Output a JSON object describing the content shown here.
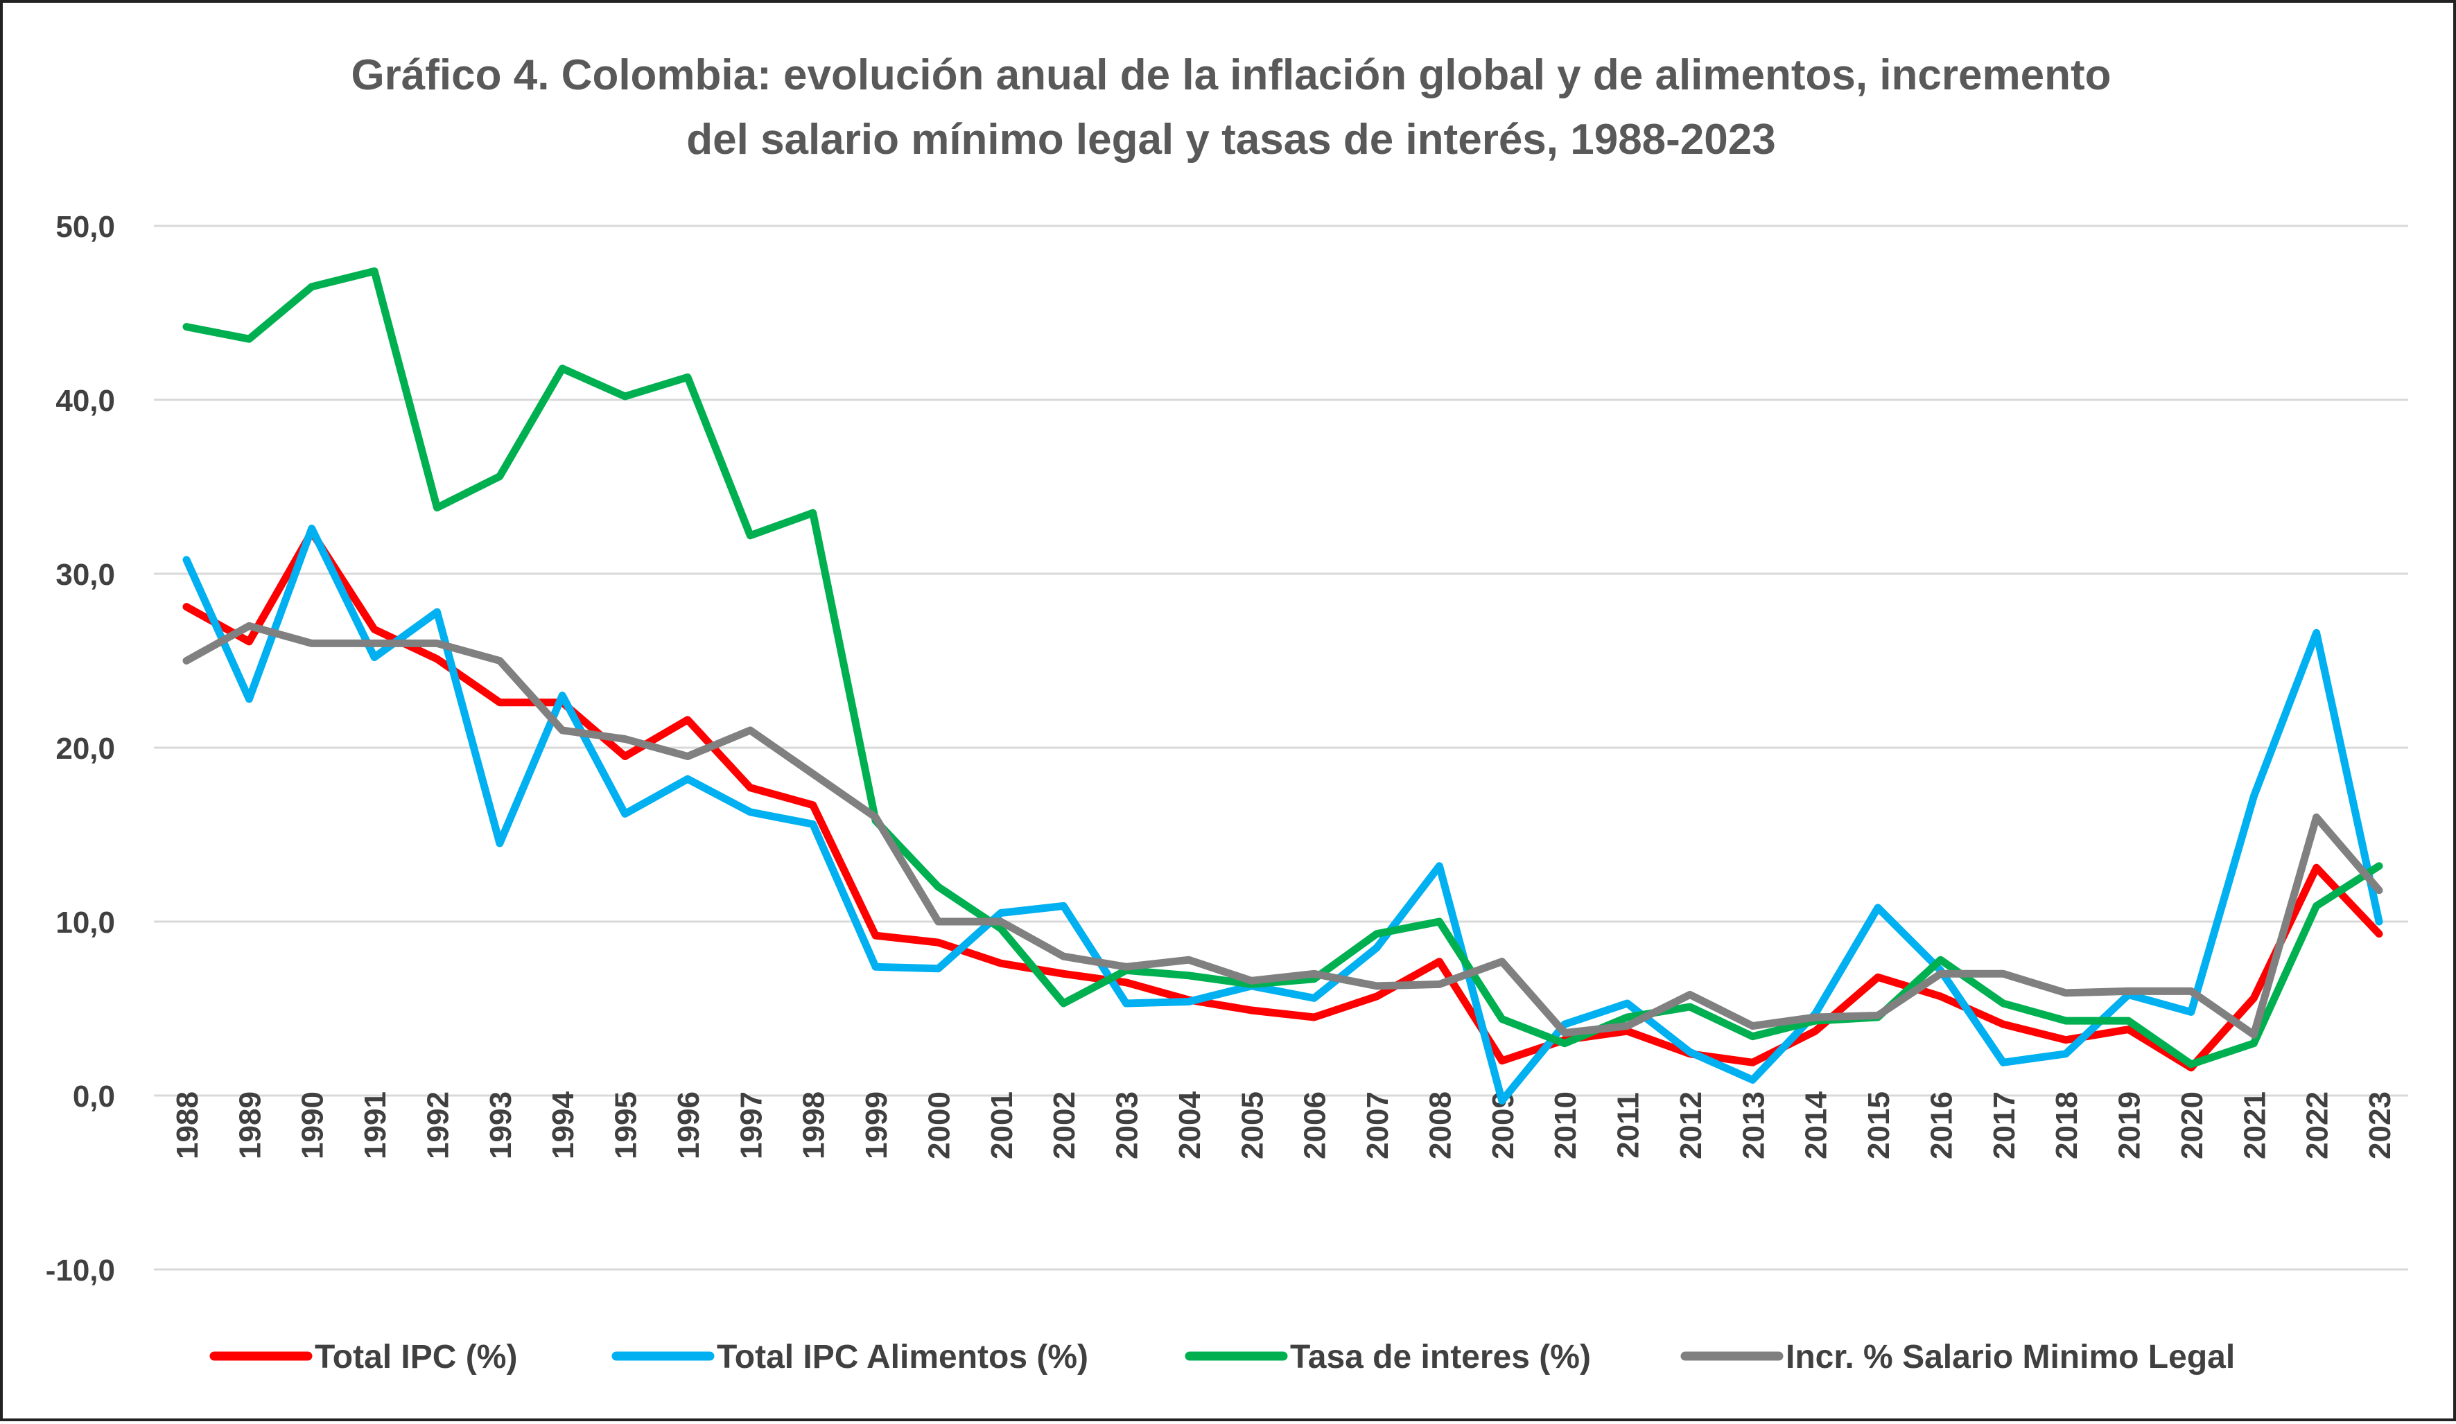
{
  "chart_data": {
    "type": "line",
    "title": "Gráfico 4. Colombia: evolución  anual de la inflación global y de alimentos, incremento del salario mínimo legal y tasas de interés, 1988-2023",
    "title_lines": [
      "Gráfico 4. Colombia: evolución  anual de la inflación global y de alimentos, incremento",
      "del salario mínimo legal y tasas de interés, 1988-2023"
    ],
    "xlabel": "",
    "ylabel": "",
    "ylim": [
      -10,
      50
    ],
    "yticks": [
      -10,
      0,
      10,
      20,
      30,
      40,
      50
    ],
    "ytick_labels": [
      "-10,0",
      "0,0",
      "10,0",
      "20,0",
      "30,0",
      "40,0",
      "50,0"
    ],
    "grid": "horizontal",
    "legend_position": "bottom",
    "x": [
      1988,
      1989,
      1990,
      1991,
      1992,
      1993,
      1994,
      1995,
      1996,
      1997,
      1998,
      1999,
      2000,
      2001,
      2002,
      2003,
      2004,
      2005,
      2006,
      2007,
      2008,
      2009,
      2010,
      2011,
      2012,
      2013,
      2014,
      2015,
      2016,
      2017,
      2018,
      2019,
      2020,
      2021,
      2022,
      2023
    ],
    "series": [
      {
        "name": "Total IPC  (%)",
        "color": "#FF0000",
        "values": [
          28.1,
          26.1,
          32.4,
          26.8,
          25.1,
          22.6,
          22.6,
          19.5,
          21.6,
          17.7,
          16.7,
          9.2,
          8.8,
          7.6,
          7.0,
          6.5,
          5.5,
          4.9,
          4.5,
          5.7,
          7.7,
          2.0,
          3.2,
          3.7,
          2.4,
          1.9,
          3.7,
          6.8,
          5.7,
          4.1,
          3.2,
          3.8,
          1.6,
          5.6,
          13.1,
          9.3
        ]
      },
      {
        "name": "Total IPC Alimentos (%)",
        "color": "#00B0F0",
        "values": [
          30.8,
          22.8,
          32.6,
          25.2,
          27.8,
          14.5,
          23.0,
          16.2,
          18.2,
          16.3,
          15.6,
          7.4,
          7.3,
          10.5,
          10.9,
          5.3,
          5.4,
          6.3,
          5.6,
          8.5,
          13.2,
          -0.3,
          4.1,
          5.3,
          2.5,
          0.9,
          4.7,
          10.8,
          7.2,
          1.9,
          2.4,
          5.8,
          4.8,
          17.2,
          26.6,
          10.0
        ]
      },
      {
        "name": "Tasa de interes (%)",
        "color": "#00B050",
        "values": [
          44.2,
          43.5,
          46.5,
          47.4,
          33.8,
          35.6,
          41.8,
          40.2,
          41.3,
          32.2,
          33.5,
          15.8,
          12.0,
          9.6,
          5.3,
          7.2,
          6.9,
          6.4,
          6.7,
          9.3,
          10.0,
          4.4,
          3.0,
          4.5,
          5.1,
          3.4,
          4.3,
          4.5,
          7.8,
          5.3,
          4.3,
          4.3,
          1.8,
          3.0,
          10.9,
          13.2
        ]
      },
      {
        "name": "Incr. % Salario Minimo Legal",
        "color": "#808080",
        "values": [
          25.0,
          27.0,
          26.0,
          26.0,
          26.0,
          25.0,
          21.0,
          20.5,
          19.5,
          21.0,
          18.5,
          16.0,
          10.0,
          10.0,
          8.0,
          7.4,
          7.8,
          6.6,
          7.0,
          6.3,
          6.4,
          7.7,
          3.6,
          4.0,
          5.8,
          4.0,
          4.5,
          4.6,
          7.0,
          7.0,
          5.9,
          6.0,
          6.0,
          3.5,
          16.0,
          11.8
        ]
      }
    ]
  }
}
